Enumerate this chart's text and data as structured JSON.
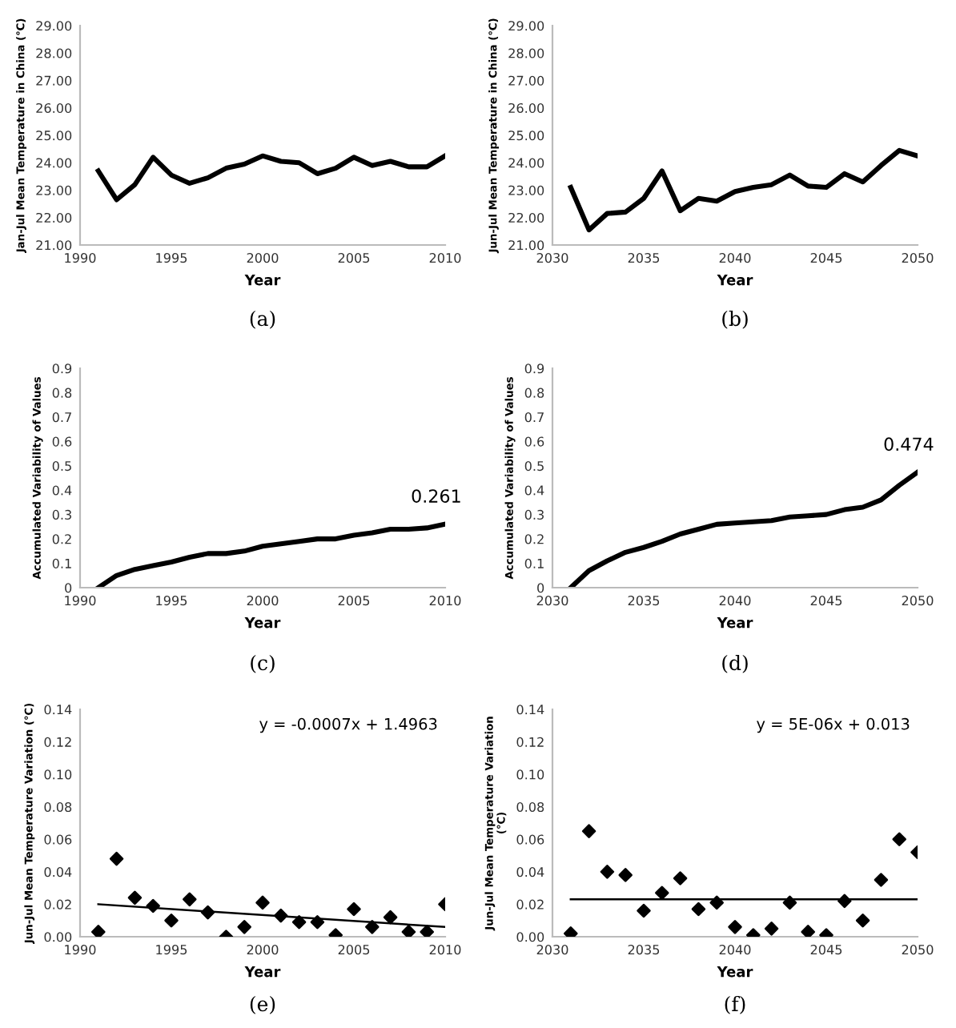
{
  "chart_data": [
    {
      "type": "line",
      "xlabel": "Year",
      "ylabel": "Jan-Jul Mean Temperature in China (℃)",
      "annotations": [
        "(a)"
      ],
      "x": [
        1991,
        1992,
        1993,
        1994,
        1995,
        1996,
        1997,
        1998,
        1999,
        2000,
        2001,
        2002,
        2003,
        2004,
        2005,
        2006,
        2007,
        2008,
        2009,
        2010
      ],
      "series": [
        {
          "color": "#000000",
          "values": [
            23.7,
            22.65,
            23.2,
            24.2,
            23.55,
            23.25,
            23.45,
            23.8,
            23.95,
            24.25,
            24.05,
            24.0,
            23.6,
            23.8,
            24.2,
            23.9,
            24.05,
            23.85,
            23.85,
            24.25
          ]
        }
      ],
      "xlim": [
        1990,
        2010
      ],
      "xticks": [
        1990,
        1995,
        2000,
        2005,
        2010
      ],
      "ylim": [
        21,
        29
      ],
      "yticks": [
        {
          "value": 21,
          "label": "21.00"
        },
        {
          "value": 22,
          "label": "22.00"
        },
        {
          "value": 23,
          "label": "23.00"
        },
        {
          "value": 24,
          "label": "24.00"
        },
        {
          "value": 25,
          "label": "25.00"
        },
        {
          "value": 26,
          "label": "26.00"
        },
        {
          "value": 27,
          "label": "27.00"
        },
        {
          "value": 28,
          "label": "28.00"
        },
        {
          "value": 29,
          "label": "29.00"
        }
      ]
    },
    {
      "type": "line",
      "xlabel": "Year",
      "ylabel": "Jun-Jul Mean Temperature in China (℃)",
      "annotations": [
        "(b)"
      ],
      "x": [
        2031,
        2032,
        2033,
        2034,
        2035,
        2036,
        2037,
        2038,
        2039,
        2040,
        2041,
        2042,
        2043,
        2044,
        2045,
        2046,
        2047,
        2048,
        2049,
        2050
      ],
      "series": [
        {
          "color": "#000000",
          "values": [
            23.1,
            21.55,
            22.15,
            22.2,
            22.7,
            23.7,
            22.25,
            22.7,
            22.6,
            22.95,
            23.1,
            23.2,
            23.55,
            23.15,
            23.1,
            23.6,
            23.3,
            23.9,
            24.45,
            24.25
          ]
        }
      ],
      "xlim": [
        2030,
        2050
      ],
      "xticks": [
        2030,
        2035,
        2040,
        2045,
        2050
      ],
      "ylim": [
        21,
        29
      ],
      "yticks": [
        {
          "value": 21,
          "label": "21.00"
        },
        {
          "value": 22,
          "label": "22.00"
        },
        {
          "value": 23,
          "label": "23.00"
        },
        {
          "value": 24,
          "label": "24.00"
        },
        {
          "value": 25,
          "label": "25.00"
        },
        {
          "value": 26,
          "label": "26.00"
        },
        {
          "value": 27,
          "label": "27.00"
        },
        {
          "value": 28,
          "label": "28.00"
        },
        {
          "value": 29,
          "label": "29.00"
        }
      ]
    },
    {
      "type": "line",
      "xlabel": "Year",
      "ylabel": "Accumulated Variability of Values",
      "annotations": [
        "(c)"
      ],
      "x": [
        1991,
        1992,
        1993,
        1994,
        1995,
        1996,
        1997,
        1998,
        1999,
        2000,
        2001,
        2002,
        2003,
        2004,
        2005,
        2006,
        2007,
        2008,
        2009,
        2010
      ],
      "series": [
        {
          "color": "#000000",
          "values": [
            0,
            0.05,
            0.075,
            0.09,
            0.105,
            0.125,
            0.14,
            0.14,
            0.15,
            0.17,
            0.18,
            0.19,
            0.2,
            0.2,
            0.215,
            0.225,
            0.24,
            0.24,
            0.245,
            0.261
          ],
          "value_labels": [
            null,
            null,
            null,
            null,
            null,
            null,
            null,
            null,
            null,
            null,
            null,
            null,
            null,
            null,
            null,
            null,
            null,
            null,
            null,
            "0.261"
          ]
        }
      ],
      "xlim": [
        1990,
        2010
      ],
      "xticks": [
        1990,
        1995,
        2000,
        2005,
        2010
      ],
      "ylim": [
        0,
        0.9
      ],
      "yticks": [
        0,
        0.1,
        0.2,
        0.3,
        0.4,
        0.5,
        0.6,
        0.7,
        0.8,
        0.9
      ]
    },
    {
      "type": "line",
      "xlabel": "Year",
      "ylabel": "Accumulated Variability of Values",
      "annotations": [
        "(d)"
      ],
      "x": [
        2031,
        2032,
        2033,
        2034,
        2035,
        2036,
        2037,
        2038,
        2039,
        2040,
        2041,
        2042,
        2043,
        2044,
        2045,
        2046,
        2047,
        2048,
        2049,
        2050
      ],
      "series": [
        {
          "color": "#000000",
          "values": [
            0,
            0.07,
            0.11,
            0.145,
            0.165,
            0.19,
            0.22,
            0.24,
            0.26,
            0.265,
            0.27,
            0.275,
            0.29,
            0.295,
            0.3,
            0.32,
            0.33,
            0.36,
            0.42,
            0.474
          ],
          "value_labels": [
            null,
            null,
            null,
            null,
            null,
            null,
            null,
            null,
            null,
            null,
            null,
            null,
            null,
            null,
            null,
            null,
            null,
            null,
            null,
            "0.474"
          ]
        }
      ],
      "xlim": [
        2030,
        2050
      ],
      "xticks": [
        2030,
        2035,
        2040,
        2045,
        2050
      ],
      "ylim": [
        0,
        0.9
      ],
      "yticks": [
        0,
        0.1,
        0.2,
        0.3,
        0.4,
        0.5,
        0.6,
        0.7,
        0.8,
        0.9
      ]
    },
    {
      "type": "scatter",
      "xlabel": "Year",
      "ylabel": "Jun-Jul Mean Temperature Variation (℃)",
      "annotations": [
        "(e)",
        "y = -0.0007x + 1.4963"
      ],
      "x": [
        1991,
        1992,
        1993,
        1994,
        1995,
        1996,
        1997,
        1998,
        1999,
        2000,
        2001,
        2002,
        2003,
        2004,
        2005,
        2006,
        2007,
        2008,
        2009,
        2010
      ],
      "series": [
        {
          "color": "#000000",
          "marker": "diamond",
          "values": [
            0.003,
            0.048,
            0.024,
            0.019,
            0.01,
            0.023,
            0.015,
            0.0,
            0.006,
            0.021,
            0.013,
            0.009,
            0.009,
            0.001,
            0.017,
            0.006,
            0.012,
            0.003,
            0.003,
            0.02
          ]
        },
        {
          "type": "line",
          "color": "#000000",
          "x": [
            1991,
            2010
          ],
          "values": [
            0.02,
            0.006
          ]
        }
      ],
      "xlim": [
        1990,
        2010
      ],
      "xticks": [
        1990,
        1995,
        2000,
        2005,
        2010
      ],
      "ylim": [
        0,
        0.14
      ],
      "yticks": [
        {
          "value": 0,
          "label": "0.00"
        },
        {
          "value": 0.02,
          "label": "0.02"
        },
        {
          "value": 0.04,
          "label": "0.04"
        },
        {
          "value": 0.06,
          "label": "0.06"
        },
        {
          "value": 0.08,
          "label": "0.08"
        },
        {
          "value": 0.1,
          "label": "0.10"
        },
        {
          "value": 0.12,
          "label": "0.12"
        },
        {
          "value": 0.14,
          "label": "0.14"
        }
      ]
    },
    {
      "type": "scatter",
      "xlabel": "Year",
      "ylabel": "Jun-Jul Mean Temperature Variation\n(℃)",
      "annotations": [
        "(f)",
        "y = 5E-06x + 0.013"
      ],
      "x": [
        2031,
        2032,
        2033,
        2034,
        2035,
        2036,
        2037,
        2038,
        2039,
        2040,
        2041,
        2042,
        2043,
        2044,
        2045,
        2046,
        2047,
        2048,
        2049,
        2050
      ],
      "series": [
        {
          "color": "#000000",
          "marker": "diamond",
          "values": [
            0.002,
            0.065,
            0.04,
            0.038,
            0.016,
            0.027,
            0.036,
            0.017,
            0.021,
            0.006,
            0.001,
            0.005,
            0.021,
            0.003,
            0.001,
            0.022,
            0.01,
            0.035,
            0.06,
            0.052
          ]
        },
        {
          "type": "line",
          "color": "#000000",
          "x": [
            2031,
            2050
          ],
          "values": [
            0.023,
            0.023
          ]
        }
      ],
      "xlim": [
        2030,
        2050
      ],
      "xticks": [
        2030,
        2035,
        2040,
        2045,
        2050
      ],
      "ylim": [
        0,
        0.14
      ],
      "yticks": [
        {
          "value": 0,
          "label": "0.00"
        },
        {
          "value": 0.02,
          "label": "0.02"
        },
        {
          "value": 0.04,
          "label": "0.04"
        },
        {
          "value": 0.06,
          "label": "0.06"
        },
        {
          "value": 0.08,
          "label": "0.08"
        },
        {
          "value": 0.1,
          "label": "0.10"
        },
        {
          "value": 0.12,
          "label": "0.12"
        },
        {
          "value": 0.14,
          "label": "0.14"
        }
      ]
    }
  ]
}
